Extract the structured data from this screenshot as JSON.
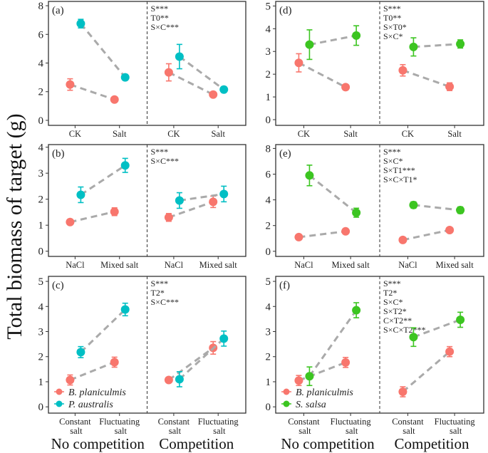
{
  "ylabel": "Total biomass of target (g)",
  "group_labels": [
    "No competition",
    "Competition"
  ],
  "colors": {
    "B. planiculmis": "#F8766D",
    "P. australis": "#00BFC4",
    "S. salsa": "#3CC521",
    "line": "#aaaaaa"
  },
  "chart_data": [
    {
      "panel": "(a)",
      "type": "scatter",
      "categories": [
        "CK",
        "Salt"
      ],
      "ylim": [
        -0.35,
        8.3
      ],
      "yticks": [
        0,
        2,
        4,
        6,
        8
      ],
      "annotations": [
        "S***",
        "T0**",
        "S×C***"
      ],
      "series": [
        {
          "species": "B. planiculmis",
          "no_competition": [
            [
              2.5,
              0.4
            ],
            [
              1.45,
              0.1
            ]
          ],
          "competition": [
            [
              3.35,
              0.6
            ],
            [
              1.8,
              0.1
            ]
          ]
        },
        {
          "species": "P. australis",
          "no_competition": [
            [
              6.75,
              0.3
            ],
            [
              3.0,
              0.2
            ]
          ],
          "competition": [
            [
              4.45,
              0.85
            ],
            [
              2.15,
              0.2
            ]
          ]
        }
      ]
    },
    {
      "panel": "(b)",
      "type": "scatter",
      "categories": [
        "NaCl",
        "Mixed salt"
      ],
      "ylim": [
        -0.2,
        4.1
      ],
      "yticks": [
        0,
        1,
        2,
        3,
        4
      ],
      "annotations": [
        "S***",
        "S×C***"
      ],
      "series": [
        {
          "species": "B. planiculmis",
          "no_competition": [
            [
              1.12,
              0.1
            ],
            [
              1.52,
              0.15
            ]
          ],
          "competition": [
            [
              1.3,
              0.15
            ],
            [
              1.9,
              0.22
            ]
          ]
        },
        {
          "species": "P. australis",
          "no_competition": [
            [
              2.17,
              0.3
            ],
            [
              3.3,
              0.27
            ]
          ],
          "competition": [
            [
              1.95,
              0.3
            ],
            [
              2.2,
              0.3
            ]
          ]
        }
      ]
    },
    {
      "panel": "(c)",
      "type": "scatter",
      "categories": [
        "Constant salt",
        "Fluctuating salt"
      ],
      "ylim": [
        -0.25,
        5.2
      ],
      "yticks": [
        0,
        1,
        2,
        3,
        4,
        5
      ],
      "annotations": [
        "S***",
        "T2*",
        "S×C***"
      ],
      "legend": [
        "B. planiculmis",
        "P. australis"
      ],
      "series": [
        {
          "species": "B. planiculmis",
          "no_competition": [
            [
              1.07,
              0.2
            ],
            [
              1.78,
              0.2
            ]
          ],
          "competition": [
            [
              1.07,
              0.1
            ],
            [
              2.35,
              0.25
            ]
          ]
        },
        {
          "species": "P. australis",
          "no_competition": [
            [
              2.18,
              0.22
            ],
            [
              3.88,
              0.25
            ]
          ],
          "competition": [
            [
              1.1,
              0.3
            ],
            [
              2.72,
              0.3
            ]
          ]
        }
      ]
    },
    {
      "panel": "(d)",
      "type": "scatter",
      "categories": [
        "CK",
        "Salt"
      ],
      "ylim": [
        -0.25,
        5.2
      ],
      "yticks": [
        0,
        1,
        2,
        3,
        4,
        5
      ],
      "annotations": [
        "S***",
        "T0**",
        "S×T0*",
        "S×C*"
      ],
      "series": [
        {
          "species": "B. planiculmis",
          "no_competition": [
            [
              2.5,
              0.4
            ],
            [
              1.43,
              0.1
            ]
          ],
          "competition": [
            [
              2.17,
              0.25
            ],
            [
              1.45,
              0.17
            ]
          ]
        },
        {
          "species": "S. salsa",
          "no_competition": [
            [
              3.3,
              0.65
            ],
            [
              3.7,
              0.43
            ]
          ],
          "competition": [
            [
              3.2,
              0.4
            ],
            [
              3.33,
              0.18
            ]
          ]
        }
      ]
    },
    {
      "panel": "(e)",
      "type": "scatter",
      "categories": [
        "NaCl",
        "Mixed salt"
      ],
      "ylim": [
        -0.4,
        8.3
      ],
      "yticks": [
        0,
        2,
        4,
        6,
        8
      ],
      "annotations": [
        "S***",
        "S×C*",
        "S×T1***",
        "S×C×T1*"
      ],
      "series": [
        {
          "species": "B. planiculmis",
          "no_competition": [
            [
              1.1,
              0.1
            ],
            [
              1.55,
              0.1
            ]
          ],
          "competition": [
            [
              0.88,
              0.1
            ],
            [
              1.65,
              0.2
            ]
          ]
        },
        {
          "species": "S. salsa",
          "no_competition": [
            [
              5.9,
              0.8
            ],
            [
              3.0,
              0.35
            ]
          ],
          "competition": [
            [
              3.6,
              0.25
            ],
            [
              3.2,
              0.25
            ]
          ]
        }
      ]
    },
    {
      "panel": "(f)",
      "type": "scatter",
      "categories": [
        "Constant salt",
        "Fluctuating salt"
      ],
      "ylim": [
        -0.25,
        5.2
      ],
      "yticks": [
        0,
        1,
        2,
        3,
        4,
        5
      ],
      "annotations": [
        "S***",
        "T2*",
        "S×C*",
        "S×T2*",
        "C×T2**",
        "S×C×T2***"
      ],
      "legend": [
        "B. planiculmis",
        "S. salsa"
      ],
      "series": [
        {
          "species": "B. planiculmis",
          "no_competition": [
            [
              1.05,
              0.2
            ],
            [
              1.77,
              0.2
            ]
          ],
          "competition": [
            [
              0.6,
              0.2
            ],
            [
              2.2,
              0.2
            ]
          ]
        },
        {
          "species": "S. salsa",
          "no_competition": [
            [
              1.22,
              0.37
            ],
            [
              3.85,
              0.3
            ]
          ],
          "competition": [
            [
              2.78,
              0.37
            ],
            [
              3.47,
              0.3
            ]
          ]
        }
      ]
    }
  ]
}
